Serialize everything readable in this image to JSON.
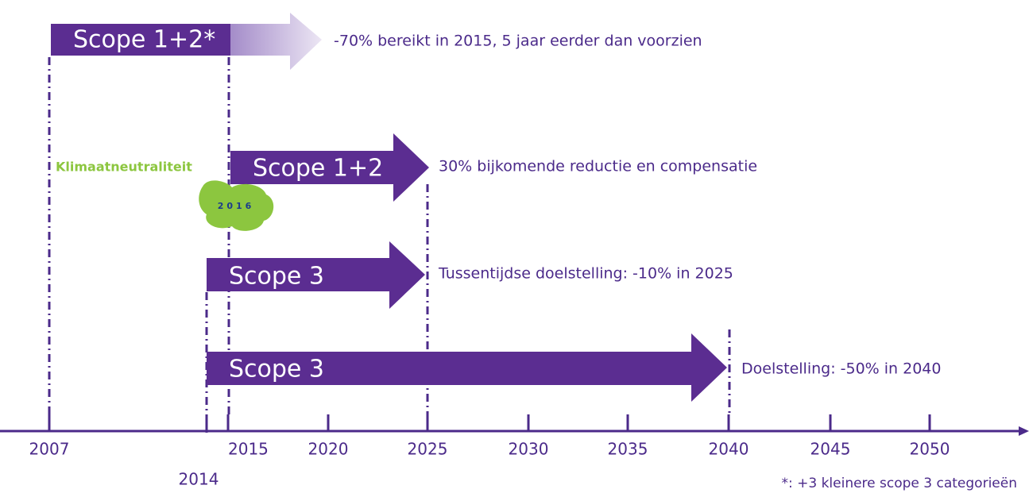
{
  "arrows": [
    {
      "label": "Scope 1+2*",
      "description": "-70% bereikt in 2015, 5 jaar eerder dan voorzien"
    },
    {
      "label": "Scope 1+2",
      "description": "30% bijkomende reductie en compensatie"
    },
    {
      "label": "Scope 3",
      "description": "Tussentijdse doelstelling: -10% in 2025"
    },
    {
      "label": "Scope 3",
      "description": "Doelstelling: -50% in 2040"
    }
  ],
  "milestone": {
    "label": "Klimaatneutraliteit",
    "year": "2016"
  },
  "timeline": {
    "years": [
      "2007",
      "2014",
      "2015",
      "2020",
      "2025",
      "2030",
      "2035",
      "2040",
      "2045",
      "2050"
    ]
  },
  "footnote": "*: +3 kleinere scope 3 categorieën"
}
